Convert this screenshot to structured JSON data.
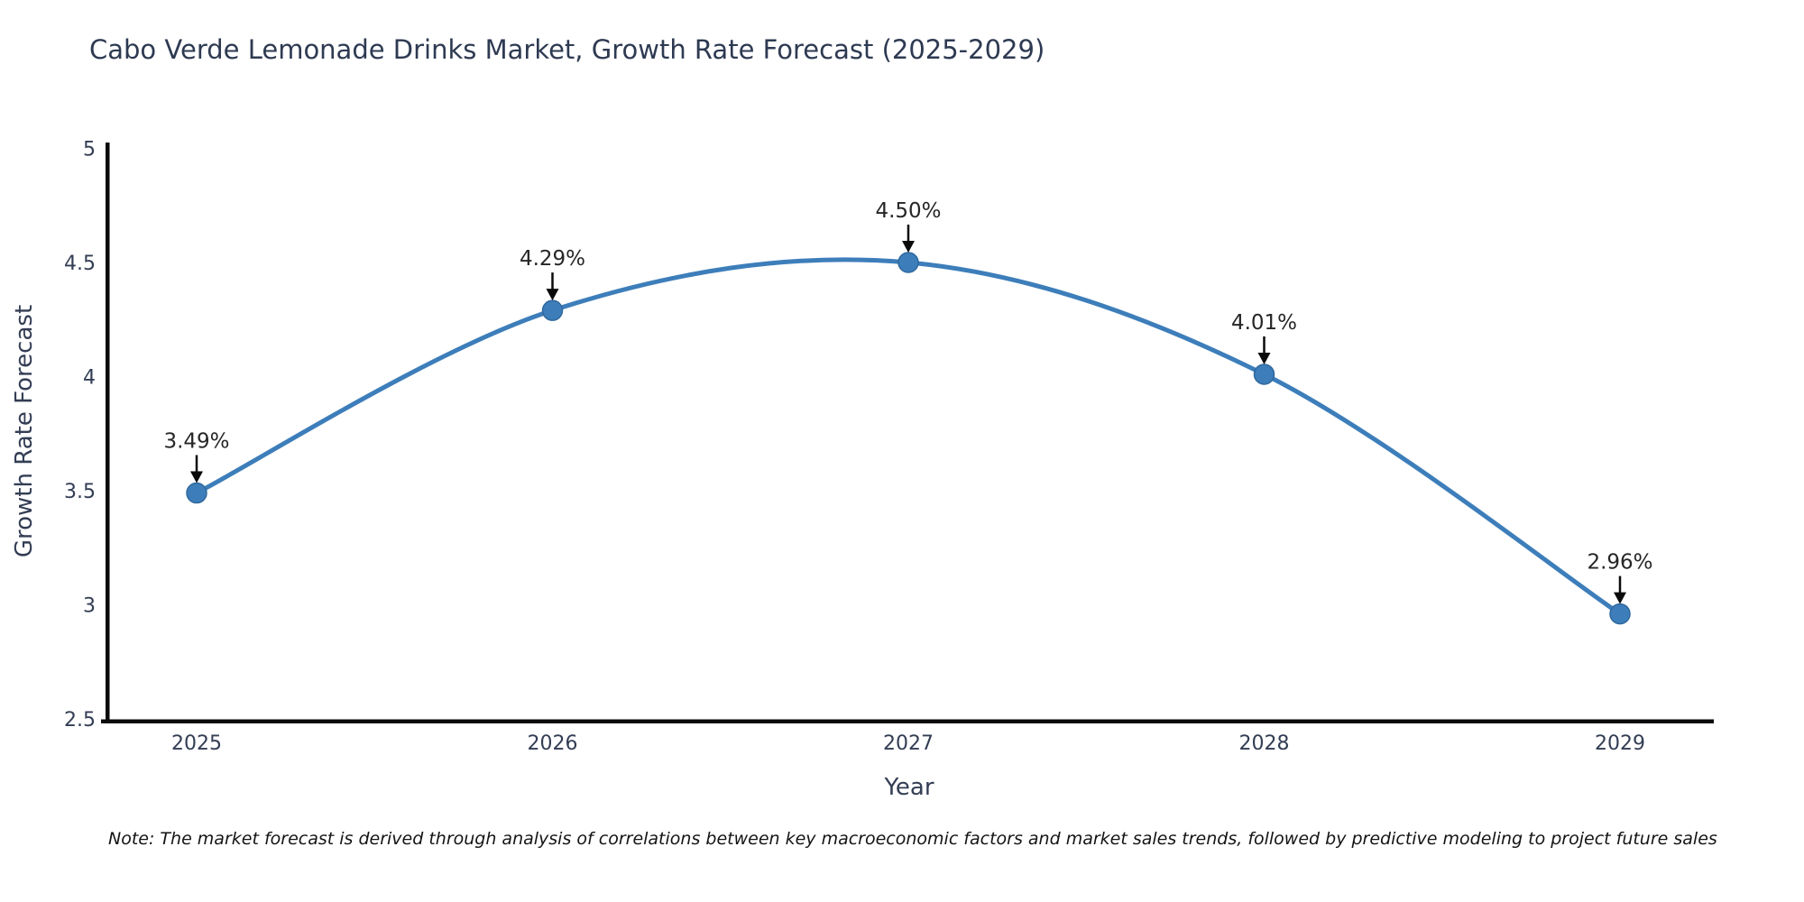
{
  "chart_data": {
    "type": "line",
    "title": "Cabo Verde Lemonade Drinks Market, Growth Rate Forecast (2025-2029)",
    "xlabel": "Year",
    "ylabel": "Growth Rate Forecast",
    "categories": [
      "2025",
      "2026",
      "2027",
      "2028",
      "2029"
    ],
    "values": [
      3.49,
      4.29,
      4.5,
      4.01,
      2.96
    ],
    "point_labels": [
      "3.49%",
      "4.29%",
      "4.50%",
      "4.01%",
      "2.96%"
    ],
    "series_name": "Growth Rate Forecast",
    "ylim": [
      2.5,
      5
    ],
    "yticks": [
      5,
      4.5,
      4,
      3.5,
      3,
      2.5
    ],
    "ytick_labels": [
      "5",
      "4.5",
      "4",
      "3.5",
      "3",
      "2.5"
    ],
    "grid": false,
    "legend": "none",
    "line_style": "smooth-spline",
    "marker_style": "circle",
    "annotation_style": "black-down-arrows-to-markers",
    "note": "Note: The market forecast is derived through analysis of correlations between key macroeconomic factors and market sales trends, followed by predictive modeling to project future sales",
    "colors": {
      "line": "#3D7EBA",
      "marker": "#3D7EBA",
      "marker_edge": "#2F689E",
      "axis": "#0a0a0a",
      "title_text": "#2e3a52",
      "tick_text": "#333d54",
      "axis_label_text": "#333d54",
      "annotation_text": "#262626",
      "arrow": "#0a0a0a",
      "note_text": "#141414",
      "background": "#ffffff"
    }
  }
}
